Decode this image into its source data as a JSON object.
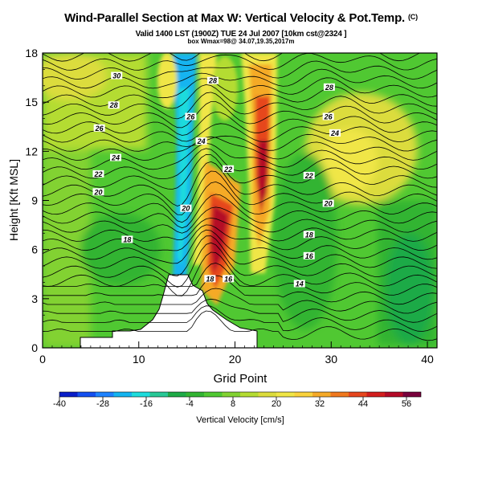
{
  "header": {
    "title": "Wind-Parallel Section at Max W: Vertical Velocity & Pot.Temp.",
    "copyright": "(C)",
    "valid_line": "Valid 1400 LST (1900Z) TUE 24 Jul 2007 [10km cst@2324 ]",
    "box_line": "box Wmax=98@ 34.07,19.35,2017m"
  },
  "chart_data": {
    "type": "heatmap",
    "xlabel": "Grid Point",
    "ylabel": "Height [Kft MSL]",
    "xlim": [
      0,
      41
    ],
    "ylim": [
      0,
      18
    ],
    "x_ticks": [
      0,
      10,
      20,
      30,
      40
    ],
    "y_ticks": [
      0,
      3,
      6,
      9,
      12,
      15,
      18
    ],
    "colorbar": {
      "label": "Vertical Velocity [cm/s]",
      "min": -40,
      "max": 60,
      "tick_values": [
        -40,
        -28,
        -16,
        -4,
        8,
        20,
        32,
        44,
        56
      ],
      "colors": [
        "#0a1ec8",
        "#1450f0",
        "#1e82ff",
        "#14b4f0",
        "#1edcdc",
        "#28c896",
        "#1eaa46",
        "#32b432",
        "#50c832",
        "#82d232",
        "#b4dc32",
        "#dcdc3c",
        "#f0e646",
        "#fad23c",
        "#f5aa28",
        "#f0781e",
        "#e6461e",
        "#d21e1e",
        "#b40a28",
        "#78003c"
      ]
    },
    "contour_variable": "Potential Temperature",
    "contour_labels": [
      {
        "text": "30",
        "x": 7.7,
        "y": 16.6
      },
      {
        "text": "28",
        "x": 17.7,
        "y": 16.3
      },
      {
        "text": "28",
        "x": 7.4,
        "y": 14.8
      },
      {
        "text": "28",
        "x": 29.8,
        "y": 15.9
      },
      {
        "text": "26",
        "x": 15.4,
        "y": 14.1
      },
      {
        "text": "26",
        "x": 5.9,
        "y": 13.4
      },
      {
        "text": "26",
        "x": 29.7,
        "y": 14.1
      },
      {
        "text": "24",
        "x": 16.5,
        "y": 12.6
      },
      {
        "text": "24",
        "x": 7.6,
        "y": 11.6
      },
      {
        "text": "24",
        "x": 30.4,
        "y": 13.1
      },
      {
        "text": "22",
        "x": 19.3,
        "y": 10.9
      },
      {
        "text": "22",
        "x": 5.8,
        "y": 10.6
      },
      {
        "text": "22",
        "x": 27.7,
        "y": 10.5
      },
      {
        "text": "20",
        "x": 5.8,
        "y": 9.5
      },
      {
        "text": "20",
        "x": 14.9,
        "y": 8.5
      },
      {
        "text": "20",
        "x": 29.7,
        "y": 8.8
      },
      {
        "text": "18",
        "x": 8.8,
        "y": 6.6
      },
      {
        "text": "18",
        "x": 27.7,
        "y": 6.9
      },
      {
        "text": "18",
        "x": 17.4,
        "y": 4.2
      },
      {
        "text": "16",
        "x": 19.3,
        "y": 4.2
      },
      {
        "text": "16",
        "x": 27.7,
        "y": 5.6
      },
      {
        "text": "14",
        "x": 26.7,
        "y": 3.9
      }
    ]
  }
}
